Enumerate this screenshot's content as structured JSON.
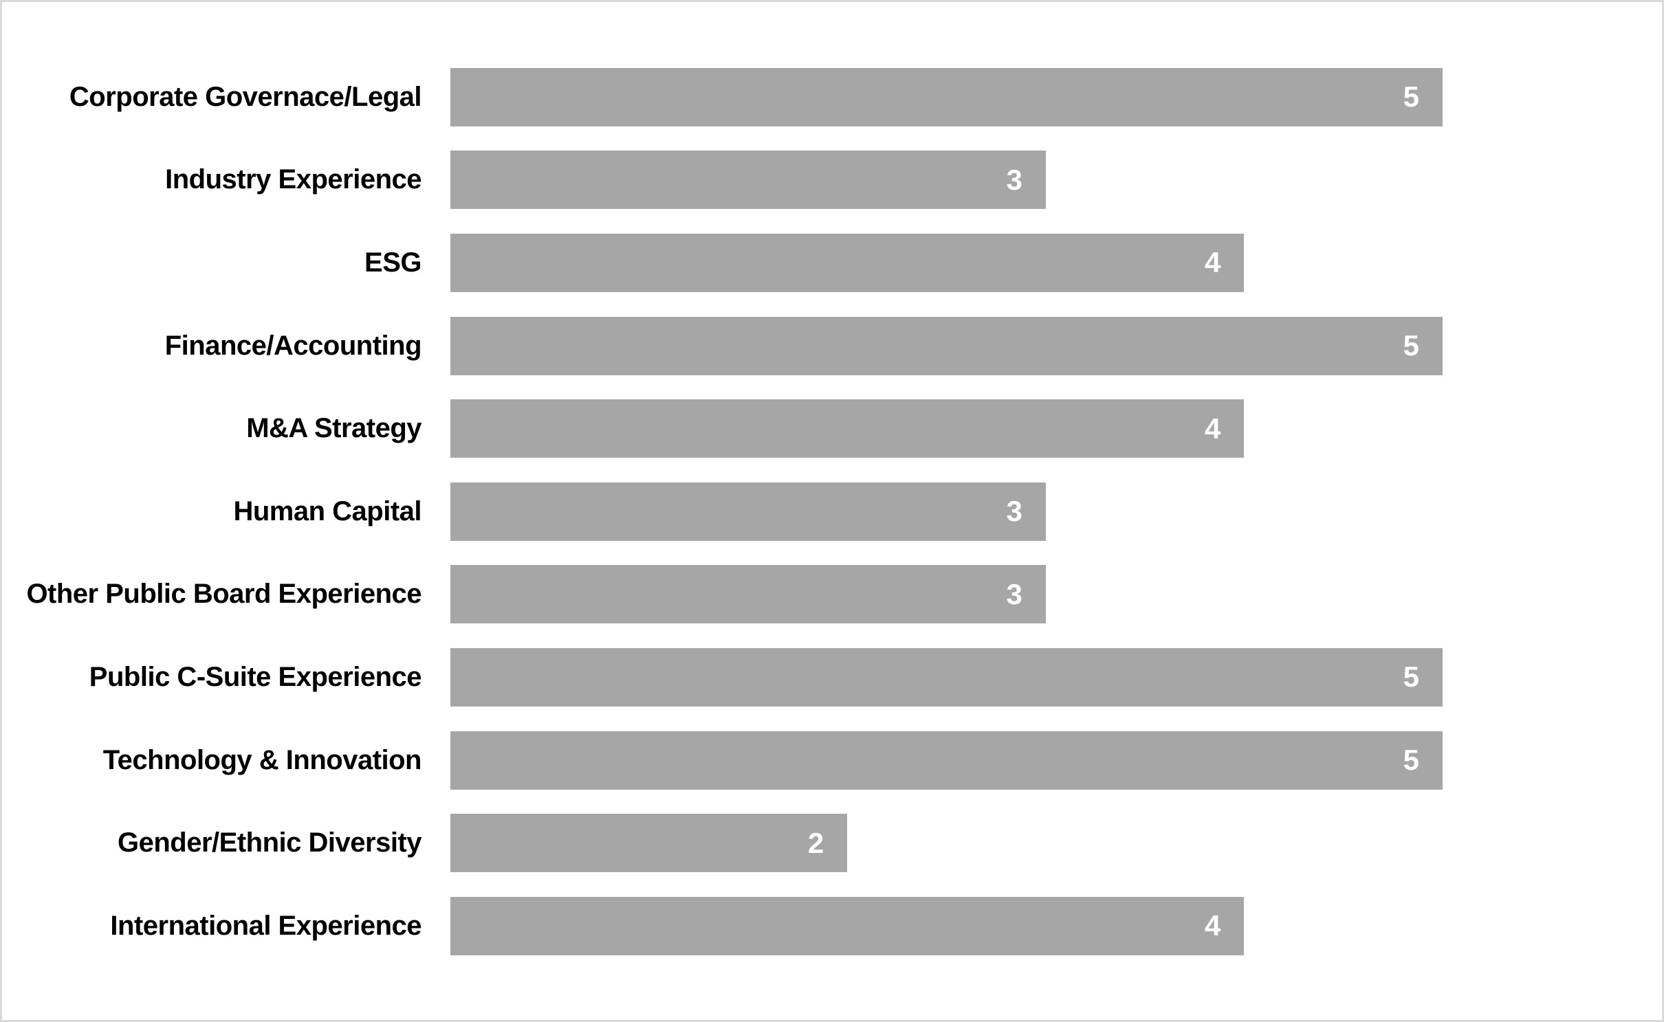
{
  "chart_data": {
    "type": "bar",
    "orientation": "horizontal",
    "title": "",
    "xlabel": "",
    "ylabel": "",
    "categories": [
      "Corporate Governace/Legal",
      "Industry Experience",
      "ESG",
      "Finance/Accounting",
      "M&A Strategy",
      "Human Capital",
      "Other Public Board Experience",
      "Public C-Suite Experience",
      "Technology & Innovation",
      "Gender/Ethnic Diversity",
      "International Experience"
    ],
    "values": [
      5,
      3,
      4,
      5,
      4,
      3,
      3,
      5,
      5,
      2,
      4
    ],
    "xlim": [
      0,
      5
    ],
    "grid": "off",
    "legend": "none",
    "data_labels": "inside-end",
    "bar_color": "#A6A6A6",
    "value_label_color": "#FFFFFF",
    "category_label_color": "#000000",
    "background_color": "#FFFFFF",
    "border_color": "#D9D9D9"
  }
}
